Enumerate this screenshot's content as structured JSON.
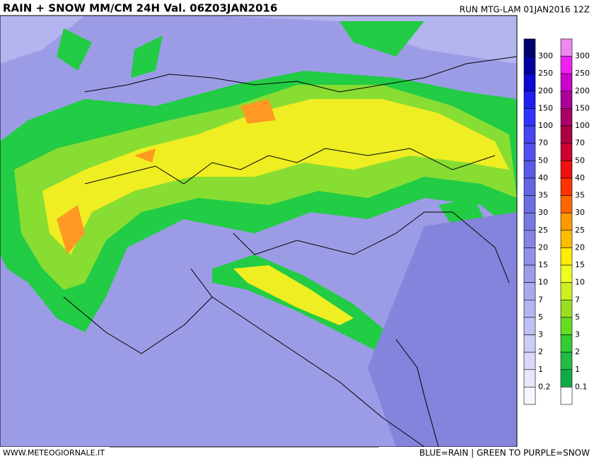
{
  "header": {
    "title": "RAIN + SNOW MM/CM 24H Val. 06Z03JAN2016",
    "run": "RUN MTG-LAM 01JAN2016 12Z"
  },
  "legend": {
    "rain_labels": [
      "300",
      "250",
      "200",
      "150",
      "100",
      "70",
      "50",
      "40",
      "35",
      "30",
      "25",
      "20",
      "15",
      "10",
      "7",
      "5",
      "3",
      "2",
      "1",
      "0.2"
    ],
    "snow_labels": [
      "300",
      "250",
      "200",
      "150",
      "100",
      "70",
      "50",
      "40",
      "35",
      "30",
      "25",
      "20",
      "15",
      "10",
      "7",
      "5",
      "3",
      "2",
      "1",
      "0.1"
    ]
  },
  "footer": {
    "site": "WWW.METEOGIORNALE.IT",
    "note": "BLUE=RAIN | GREEN TO PURPLE=SNOW"
  }
}
